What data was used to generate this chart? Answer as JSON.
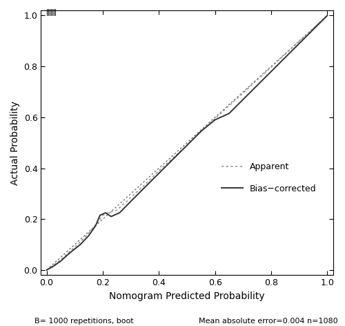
{
  "xlabel": "Nomogram Predicted Probability",
  "ylabel": "Actual Probability",
  "xlim": [
    -0.02,
    1.02
  ],
  "ylim": [
    -0.02,
    1.02
  ],
  "xticks": [
    0.0,
    0.2,
    0.4,
    0.6,
    0.8,
    1.0
  ],
  "yticks": [
    0.0,
    0.2,
    0.4,
    0.6,
    0.8,
    1.0
  ],
  "xtick_labels": [
    "0.0",
    "0.2",
    "0.4",
    "0.6",
    "0.8",
    "1.0"
  ],
  "ytick_labels": [
    "0.0",
    "0.2",
    "0.4",
    "0.6",
    "0.8",
    "1.0"
  ],
  "reference_color": "#777777",
  "reference_lw": 1.0,
  "apparent_color": "#999999",
  "apparent_lw": 1.2,
  "bias_corrected_color": "#333333",
  "bias_corrected_lw": 1.4,
  "legend_apparent": "Apparent",
  "legend_bias": "Bias−corrected",
  "footnote_left": "B= 1000 repetitions, boot",
  "footnote_right": "Mean absolute error=0.004 n=1080",
  "fontsize_axis_label": 10,
  "fontsize_tick": 9,
  "fontsize_legend": 9,
  "fontsize_footnote": 8,
  "bg_color": "#ffffff"
}
